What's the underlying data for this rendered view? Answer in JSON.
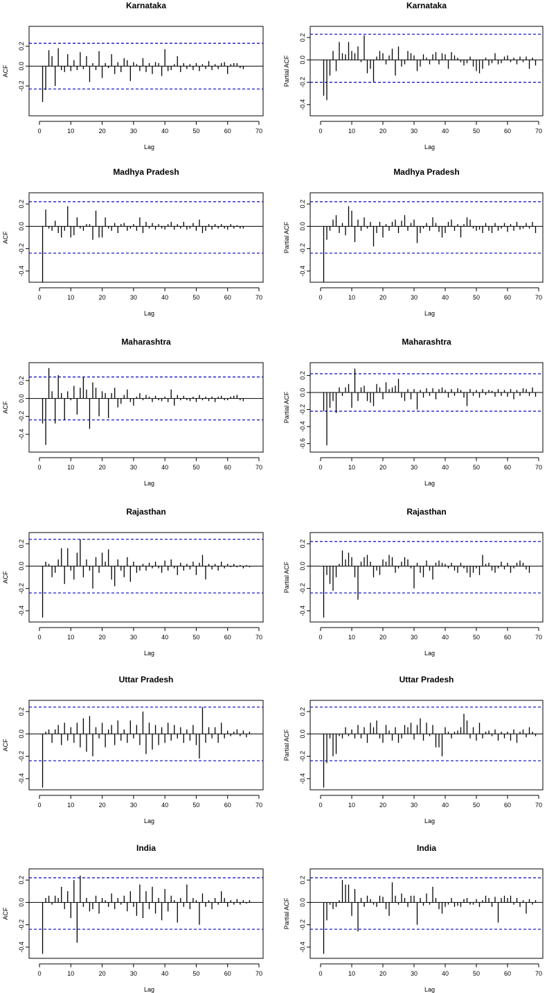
{
  "colors": {
    "ci_line": "#0000cc",
    "bar": "#000000",
    "frame": "#000000"
  },
  "chart_data": [
    {
      "type": "bar",
      "title": "Karnataka",
      "ylabel": "ACF",
      "xlabel": "Lag",
      "xlim": [
        0,
        70
      ],
      "ylim": [
        -0.5,
        0.4
      ],
      "yticks": [
        0.2,
        0.0,
        -0.2
      ],
      "ci": [
        0.23,
        -0.23
      ],
      "start_lag": 1,
      "values": [
        -0.36,
        -0.24,
        0.16,
        0.1,
        -0.2,
        0.18,
        -0.04,
        -0.06,
        0.12,
        -0.05,
        0.06,
        -0.04,
        0.14,
        -0.03,
        0.1,
        -0.16,
        0.03,
        -0.04,
        0.15,
        -0.12,
        0.03,
        -0.02,
        0.12,
        -0.08,
        0.04,
        -0.06,
        0.08,
        0.06,
        -0.15,
        0.04,
        0.02,
        -0.05,
        0.08,
        -0.06,
        0.03,
        -0.08,
        0.04,
        0.03,
        -0.1,
        0.17,
        -0.05,
        -0.04,
        0.02,
        0.1,
        -0.06,
        0.03,
        -0.03,
        0.02,
        -0.04,
        0.03,
        -0.05,
        0.02,
        -0.03,
        0.05,
        -0.04,
        0.02,
        -0.03,
        0.03,
        0.04,
        -0.08,
        0.02,
        0.03,
        0.03,
        -0.02,
        -0.03
      ]
    },
    {
      "type": "bar",
      "title": "Karnataka",
      "ylabel": "Partial ACF",
      "xlabel": "Lag",
      "xlim": [
        0,
        70
      ],
      "ylim": [
        -0.5,
        0.3
      ],
      "yticks": [
        0.2,
        0.0,
        -0.2,
        -0.4
      ],
      "ci": [
        0.23,
        -0.2
      ],
      "start_lag": 1,
      "values": [
        -0.32,
        -0.36,
        -0.14,
        0.08,
        -0.1,
        0.16,
        0.06,
        0.05,
        0.16,
        0.08,
        0.06,
        0.12,
        -0.02,
        0.22,
        -0.12,
        -0.08,
        -0.2,
        0.03,
        0.08,
        0.06,
        -0.04,
        0.04,
        0.1,
        -0.14,
        0.12,
        -0.06,
        -0.04,
        0.08,
        0.06,
        0.04,
        -0.1,
        -0.06,
        0.05,
        0.02,
        -0.04,
        0.05,
        0.07,
        -0.04,
        0.06,
        0.05,
        -0.08,
        0.07,
        0.04,
        0.02,
        -0.02,
        -0.05,
        -0.03,
        0.03,
        -0.06,
        -0.1,
        -0.12,
        -0.08,
        0.02,
        -0.05,
        -0.03,
        0.06,
        -0.04,
        -0.03,
        0.03,
        0.04,
        -0.02,
        0.02,
        -0.04,
        0.03,
        -0.02,
        0.03,
        -0.08,
        0.02,
        -0.05
      ]
    },
    {
      "type": "bar",
      "title": "Madhya Pradesh",
      "ylabel": "ACF",
      "xlabel": "Lag",
      "xlim": [
        0,
        70
      ],
      "ylim": [
        -0.5,
        0.3
      ],
      "yticks": [
        0.2,
        0.0,
        -0.2,
        -0.4
      ],
      "ci": [
        0.22,
        -0.24
      ],
      "start_lag": 1,
      "values": [
        -0.5,
        0.15,
        -0.02,
        -0.04,
        0.05,
        -0.06,
        -0.1,
        -0.04,
        0.18,
        -0.1,
        -0.08,
        0.08,
        -0.02,
        -0.04,
        0.02,
        0.02,
        -0.12,
        0.14,
        -0.1,
        -0.1,
        0.08,
        -0.02,
        -0.04,
        0.03,
        -0.06,
        0.02,
        0.03,
        -0.04,
        -0.02,
        0.02,
        -0.04,
        0.08,
        -0.06,
        0.04,
        -0.02,
        0.03,
        -0.03,
        0.02,
        -0.02,
        -0.03,
        0.02,
        0.04,
        -0.03,
        0.02,
        -0.02,
        0.04,
        -0.03,
        -0.02,
        0.03,
        -0.04,
        0.06,
        -0.06,
        -0.04,
        0.02,
        -0.03,
        0.02,
        -0.02,
        0.02,
        -0.02,
        -0.03,
        0.02,
        -0.02,
        0.01,
        -0.02,
        -0.02
      ]
    },
    {
      "type": "bar",
      "title": "Madhya Pradesh",
      "ylabel": "Partial ACF",
      "xlabel": "Lag",
      "xlim": [
        0,
        70
      ],
      "ylim": [
        -0.5,
        0.3
      ],
      "yticks": [
        0.2,
        0.0,
        -0.2,
        -0.4
      ],
      "ci": [
        0.22,
        -0.24
      ],
      "start_lag": 1,
      "values": [
        -0.5,
        -0.12,
        -0.04,
        0.06,
        0.1,
        -0.06,
        0.03,
        -0.08,
        0.18,
        0.14,
        -0.14,
        0.06,
        -0.04,
        0.08,
        -0.02,
        0.04,
        -0.18,
        -0.06,
        0.04,
        -0.1,
        0.02,
        -0.04,
        0.04,
        0.06,
        -0.06,
        0.05,
        0.1,
        -0.04,
        0.03,
        0.06,
        -0.15,
        -0.06,
        -0.02,
        0.03,
        -0.04,
        0.08,
        0.03,
        -0.05,
        -0.1,
        -0.06,
        0.04,
        0.06,
        -0.04,
        0.02,
        -0.1,
        0.02,
        0.08,
        0.06,
        -0.02,
        -0.04,
        -0.03,
        -0.06,
        0.03,
        -0.04,
        -0.06,
        0.03,
        -0.04,
        -0.02,
        0.03,
        -0.05,
        0.02,
        -0.04,
        0.04,
        -0.03,
        -0.02,
        0.03,
        -0.02,
        0.04,
        -0.06
      ]
    },
    {
      "type": "bar",
      "title": "Maharashtra",
      "ylabel": "ACF",
      "xlabel": "Lag",
      "xlim": [
        0,
        70
      ],
      "ylim": [
        -0.6,
        0.4
      ],
      "yticks": [
        0.2,
        0.0,
        -0.2,
        -0.4
      ],
      "ci": [
        0.24,
        -0.24
      ],
      "start_lag": 1,
      "values": [
        -0.28,
        -0.52,
        0.34,
        0.08,
        -0.28,
        0.26,
        0.06,
        -0.24,
        0.08,
        -0.02,
        0.14,
        -0.18,
        0.12,
        0.24,
        0.1,
        -0.34,
        0.18,
        0.12,
        -0.2,
        0.08,
        0.06,
        -0.22,
        0.06,
        0.12,
        -0.1,
        -0.06,
        0.04,
        0.1,
        -0.04,
        -0.08,
        0.02,
        0.06,
        -0.02,
        0.04,
        0.02,
        -0.04,
        0.03,
        -0.02,
        -0.03,
        0.02,
        -0.04,
        0.1,
        -0.08,
        0.04,
        -0.02,
        0.03,
        -0.02,
        -0.03,
        0.02,
        -0.04,
        0.04,
        -0.02,
        0.02,
        -0.03,
        0.02,
        -0.04,
        0.02,
        0.03,
        -0.02,
        -0.02,
        0.02,
        0.03,
        0.04,
        -0.02,
        -0.03
      ]
    },
    {
      "type": "bar",
      "title": "Maharashtra",
      "ylabel": "Partial ACF",
      "xlabel": "Lag",
      "xlim": [
        0,
        70
      ],
      "ylim": [
        -0.7,
        0.35
      ],
      "yticks": [
        0.2,
        0.0,
        -0.2,
        -0.4,
        -0.6
      ],
      "ci": [
        0.22,
        -0.22
      ],
      "start_lag": 1,
      "values": [
        -0.22,
        -0.62,
        -0.18,
        -0.1,
        -0.24,
        0.06,
        -0.04,
        0.06,
        0.1,
        -0.18,
        0.28,
        -0.1,
        0.06,
        0.08,
        -0.1,
        -0.12,
        -0.16,
        0.1,
        0.06,
        -0.08,
        0.12,
        0.04,
        0.06,
        0.08,
        0.16,
        -0.06,
        -0.1,
        0.04,
        -0.08,
        0.04,
        -0.2,
        0.03,
        -0.06,
        0.05,
        -0.04,
        0.05,
        -0.08,
        0.04,
        0.06,
        0.03,
        -0.06,
        0.04,
        -0.04,
        0.05,
        0.03,
        -0.06,
        -0.16,
        0.04,
        -0.04,
        0.03,
        -0.06,
        0.04,
        -0.03,
        0.03,
        0.02,
        -0.05,
        0.04,
        -0.04,
        0.03,
        -0.05,
        0.04,
        -0.08,
        0.03,
        -0.04,
        0.05,
        0.04,
        -0.04,
        0.06,
        -0.05
      ]
    },
    {
      "type": "bar",
      "title": "Rajasthan",
      "ylabel": "ACF",
      "xlabel": "Lag",
      "xlim": [
        0,
        70
      ],
      "ylim": [
        -0.5,
        0.3
      ],
      "yticks": [
        0.2,
        0.0,
        -0.2,
        -0.4
      ],
      "ci": [
        0.24,
        -0.24
      ],
      "start_lag": 1,
      "values": [
        -0.46,
        0.04,
        0.02,
        -0.1,
        -0.06,
        0.06,
        0.16,
        -0.16,
        0.16,
        -0.04,
        -0.12,
        0.12,
        0.24,
        -0.1,
        0.06,
        -0.04,
        -0.2,
        0.08,
        -0.06,
        0.12,
        0.04,
        0.15,
        -0.12,
        -0.18,
        0.06,
        -0.04,
        -0.1,
        0.08,
        -0.14,
        0.04,
        -0.06,
        -0.04,
        0.02,
        -0.04,
        0.03,
        -0.02,
        0.04,
        -0.02,
        -0.06,
        0.05,
        -0.04,
        0.06,
        -0.02,
        -0.08,
        0.03,
        -0.04,
        0.02,
        -0.03,
        0.04,
        -0.08,
        0.03,
        0.1,
        -0.12,
        0.02,
        -0.03,
        0.02,
        -0.04,
        0.04,
        -0.02,
        0.02,
        -0.01,
        0.02,
        -0.01,
        0.01,
        -0.02,
        0.01,
        -0.01
      ]
    },
    {
      "type": "bar",
      "title": "Rajasthan",
      "ylabel": "Partial ACF",
      "xlabel": "Lag",
      "xlim": [
        0,
        70
      ],
      "ylim": [
        -0.5,
        0.3
      ],
      "yticks": [
        0.2,
        0.0,
        -0.2,
        -0.4
      ],
      "ci": [
        0.22,
        -0.24
      ],
      "start_lag": 1,
      "values": [
        -0.46,
        -0.08,
        -0.16,
        -0.22,
        -0.1,
        0.02,
        0.14,
        0.06,
        0.12,
        0.08,
        -0.1,
        -0.3,
        0.04,
        0.08,
        0.1,
        0.04,
        -0.1,
        -0.04,
        -0.08,
        0.06,
        0.04,
        0.1,
        0.08,
        -0.06,
        -0.02,
        0.04,
        0.08,
        0.06,
        -0.02,
        -0.2,
        0.03,
        -0.06,
        -0.1,
        0.05,
        -0.04,
        -0.12,
        0.03,
        0.05,
        0.03,
        0.02,
        -0.02,
        0.03,
        -0.04,
        -0.06,
        0.03,
        -0.02,
        -0.06,
        -0.1,
        -0.06,
        -0.02,
        -0.08,
        0.1,
        0.02,
        0.03,
        -0.04,
        -0.06,
        -0.02,
        0.04,
        -0.03,
        0.03,
        -0.06,
        -0.02,
        0.03,
        0.05,
        0.03,
        -0.03,
        -0.06
      ]
    },
    {
      "type": "bar",
      "title": "Uttar Pradesh",
      "ylabel": "ACF",
      "xlabel": "Lag",
      "xlim": [
        0,
        70
      ],
      "ylim": [
        -0.5,
        0.3
      ],
      "yticks": [
        0.2,
        0.0,
        -0.2,
        -0.4
      ],
      "ci": [
        0.24,
        -0.24
      ],
      "start_lag": 1,
      "values": [
        -0.48,
        0.02,
        0.04,
        -0.08,
        0.04,
        0.08,
        -0.1,
        0.1,
        -0.06,
        0.06,
        -0.08,
        0.1,
        -0.12,
        0.14,
        -0.16,
        0.16,
        -0.2,
        0.06,
        -0.04,
        0.1,
        -0.12,
        0.04,
        0.08,
        -0.1,
        0.12,
        -0.06,
        0.04,
        -0.08,
        0.12,
        -0.04,
        0.08,
        -0.1,
        0.2,
        -0.18,
        0.1,
        -0.14,
        0.08,
        -0.1,
        0.06,
        -0.08,
        0.1,
        -0.06,
        0.08,
        -0.04,
        0.06,
        -0.08,
        0.04,
        -0.06,
        0.08,
        -0.1,
        -0.22,
        0.24,
        -0.08,
        0.06,
        -0.04,
        0.06,
        -0.08,
        0.1,
        -0.04,
        0.03,
        -0.02,
        0.02,
        0.04,
        -0.02,
        0.03,
        -0.03,
        0.02
      ]
    },
    {
      "type": "bar",
      "title": "Uttar Pradesh",
      "ylabel": "Partial ACF",
      "xlabel": "Lag",
      "xlim": [
        0,
        70
      ],
      "ylim": [
        -0.5,
        0.3
      ],
      "yticks": [
        0.2,
        0.0,
        -0.2,
        -0.4
      ],
      "ci": [
        0.24,
        -0.24
      ],
      "start_lag": 1,
      "values": [
        -0.48,
        -0.26,
        -0.04,
        -0.2,
        -0.18,
        -0.02,
        -0.04,
        0.06,
        -0.02,
        0.04,
        -0.04,
        0.08,
        -0.04,
        0.06,
        -0.08,
        0.1,
        0.06,
        0.12,
        -0.04,
        -0.08,
        0.08,
        0.03,
        -0.06,
        0.06,
        -0.08,
        -0.04,
        0.08,
        0.06,
        0.1,
        -0.05,
        0.08,
        0.14,
        -0.06,
        0.1,
        -0.02,
        0.08,
        -0.12,
        -0.12,
        -0.2,
        0.06,
        0.02,
        -0.04,
        0.02,
        0.03,
        0.06,
        0.18,
        0.12,
        -0.04,
        0.06,
        -0.06,
        0.1,
        -0.04,
        0.02,
        0.03,
        -0.02,
        0.04,
        -0.06,
        0.02,
        -0.04,
        0.02,
        -0.06,
        0.04,
        -0.08,
        0.02,
        0.04,
        -0.03,
        0.06,
        0.02,
        -0.02
      ]
    },
    {
      "type": "bar",
      "title": "India",
      "ylabel": "ACF",
      "xlabel": "Lag",
      "xlim": [
        0,
        70
      ],
      "ylim": [
        -0.5,
        0.3
      ],
      "yticks": [
        0.2,
        0.0,
        -0.2,
        -0.4
      ],
      "ci": [
        0.22,
        -0.24
      ],
      "start_lag": 1,
      "values": [
        -0.46,
        0.04,
        0.06,
        -0.02,
        0.06,
        0.04,
        0.14,
        -0.06,
        0.1,
        -0.14,
        0.2,
        -0.36,
        0.24,
        -0.04,
        0.04,
        -0.08,
        -0.06,
        0.06,
        -0.1,
        0.04,
        0.02,
        -0.04,
        0.08,
        -0.06,
        0.04,
        -0.02,
        0.06,
        -0.08,
        0.1,
        -0.04,
        -0.12,
        0.16,
        -0.14,
        0.1,
        -0.06,
        0.14,
        -0.1,
        0.04,
        -0.16,
        0.12,
        -0.08,
        0.06,
        0.02,
        -0.18,
        0.04,
        -0.04,
        0.16,
        -0.06,
        0.04,
        0.02,
        -0.2,
        0.08,
        -0.04,
        0.02,
        -0.06,
        0.04,
        -0.02,
        0.1,
        0.04,
        -0.04,
        0.02,
        -0.02,
        0.03,
        -0.02,
        0.02,
        -0.01,
        0.02
      ]
    },
    {
      "type": "bar",
      "title": "India",
      "ylabel": "Partial ACF",
      "xlabel": "Lag",
      "xlim": [
        0,
        70
      ],
      "ylim": [
        -0.5,
        0.3
      ],
      "yticks": [
        0.2,
        0.0,
        -0.2,
        -0.4
      ],
      "ci": [
        0.22,
        -0.24
      ],
      "start_lag": 1,
      "values": [
        -0.46,
        -0.16,
        -0.02,
        -0.06,
        -0.04,
        0.02,
        0.2,
        0.16,
        0.16,
        -0.12,
        0.12,
        -0.26,
        0.04,
        -0.04,
        0.06,
        0.03,
        -0.02,
        -0.04,
        0.06,
        0.05,
        -0.06,
        -0.12,
        0.18,
        0.06,
        -0.02,
        0.08,
        0.04,
        -0.04,
        0.06,
        0.06,
        -0.2,
        0.04,
        -0.03,
        0.08,
        -0.02,
        0.14,
        0.04,
        -0.06,
        -0.1,
        -0.04,
        -0.02,
        0.04,
        -0.04,
        -0.03,
        -0.04,
        0.03,
        0.04,
        -0.02,
        -0.02,
        0.03,
        -0.04,
        0.02,
        0.06,
        0.04,
        -0.04,
        0.05,
        -0.18,
        0.04,
        0.06,
        0.04,
        0.06,
        -0.02,
        0.04,
        -0.04,
        0.02,
        -0.1,
        0.03,
        -0.02,
        0.02
      ]
    }
  ]
}
